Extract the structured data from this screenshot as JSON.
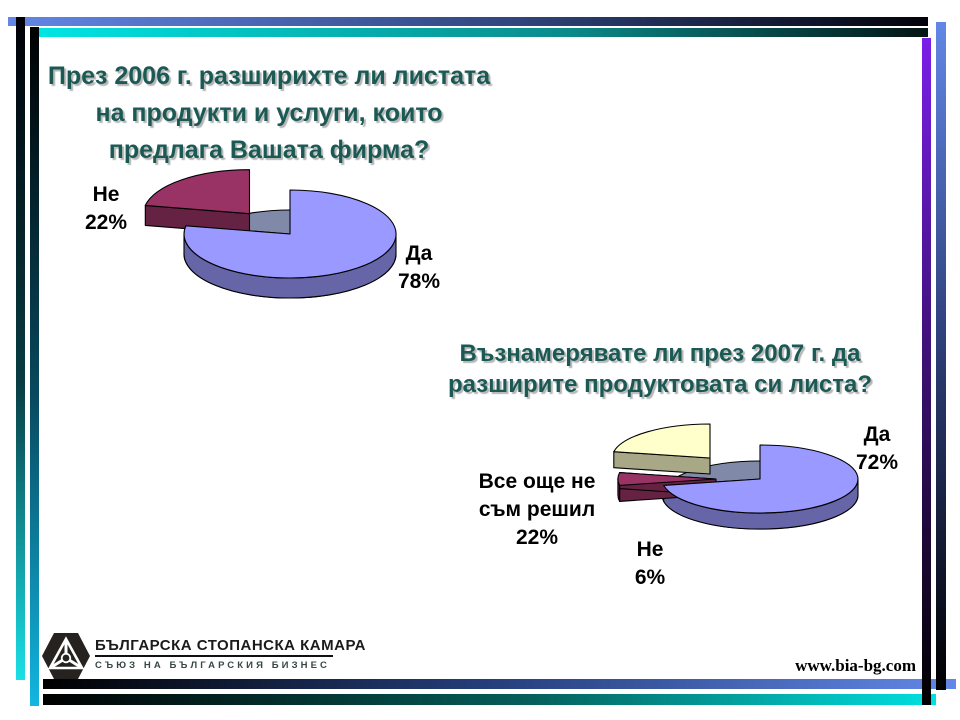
{
  "theme": {
    "background": "#FFFFFF",
    "title_color": "#1B5A54",
    "label_color": "#000000",
    "pie_floor_color": "#808AA8",
    "border_bar_colors": {
      "blue": "#6287E6",
      "cyan": "#00E6E6",
      "purple": "#7A1FE8",
      "black": "#000000"
    }
  },
  "chart_data": [
    {
      "type": "pie",
      "style": "3d-exploded",
      "title": "През 2006 г. разширихте ли листата на продукти и услуги, които предлага Вашата фирма?",
      "title_lines": [
        "През 2006 г. разширихте ли листата",
        "на продукти и услуги, които",
        "предлага Вашата фирма?"
      ],
      "unit": "%",
      "legend_position": "none",
      "categories": [
        "Да",
        "Не"
      ],
      "values": [
        78,
        22
      ],
      "slices": [
        {
          "label": "Да",
          "value": 78,
          "pct": "78%",
          "color": "#9999FF",
          "explode": 0,
          "label_lines": [
            "Да"
          ]
        },
        {
          "label": "Не",
          "value": 22,
          "pct": "22%",
          "color": "#993366",
          "explode": 0.6,
          "label_lines": [
            "Не"
          ]
        }
      ]
    },
    {
      "type": "pie",
      "style": "3d-exploded",
      "title": "Възнамерявате ли през 2007 г. да разширите продуктовата си листа?",
      "title_lines": [
        "Възнамерявате ли през 2007 г. да",
        "разширите продуктовата си листа?"
      ],
      "unit": "%",
      "legend_position": "none",
      "categories": [
        "Да",
        "Не",
        "Все още не съм решил"
      ],
      "values": [
        72,
        6,
        22
      ],
      "slices": [
        {
          "label": "Да",
          "value": 72,
          "pct": "72%",
          "color": "#9999FF",
          "explode": 0,
          "label_lines": [
            "Да"
          ]
        },
        {
          "label": "Не",
          "value": 6,
          "pct": "6%",
          "color": "#993366",
          "explode": 0.45,
          "label_lines": [
            "Не"
          ]
        },
        {
          "label": "Все още не съм решил",
          "value": 22,
          "pct": "22%",
          "color": "#FFFFCC",
          "explode": 0.8,
          "label_lines": [
            "Все още не",
            "съм решил"
          ]
        }
      ]
    }
  ],
  "footer": {
    "logo_title": "БЪЛГАРСКА СТОПАНСКА КАМАРА",
    "logo_subtitle": "СЪЮЗ НА БЪЛГАРСКИЯ БИЗНЕС",
    "website": "www.bia-bg.com"
  }
}
